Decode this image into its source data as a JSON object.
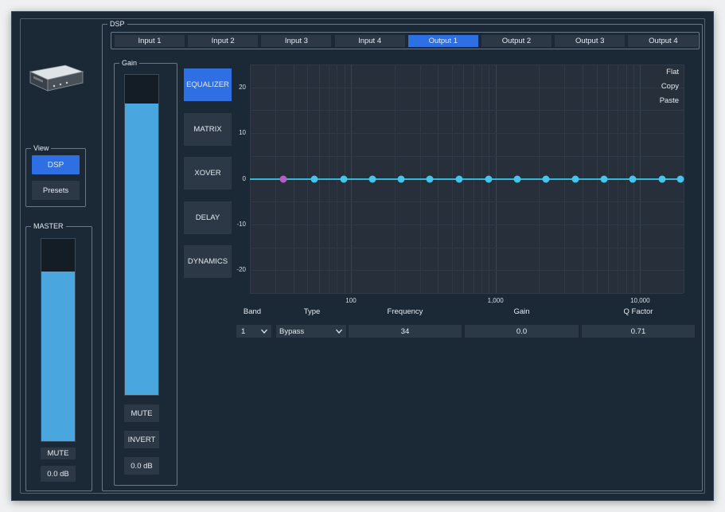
{
  "dsp": {
    "group_label": "DSP",
    "tabs": [
      {
        "label": "Input 1",
        "active": false
      },
      {
        "label": "Input 2",
        "active": false
      },
      {
        "label": "Input 3",
        "active": false
      },
      {
        "label": "Input 4",
        "active": false
      },
      {
        "label": "Output 1",
        "active": true
      },
      {
        "label": "Output 2",
        "active": false
      },
      {
        "label": "Output 3",
        "active": false
      },
      {
        "label": "Output 4",
        "active": false
      }
    ]
  },
  "view": {
    "group_label": "View",
    "dsp_label": "DSP",
    "presets_label": "Presets",
    "active": "DSP"
  },
  "master": {
    "group_label": "MASTER",
    "level": 0.84,
    "mute_label": "MUTE",
    "gain_value": "0.0 dB"
  },
  "gain": {
    "group_label": "Gain",
    "level": 0.91,
    "mute_label": "MUTE",
    "invert_label": "INVERT",
    "gain_value": "0.0 dB"
  },
  "modes": [
    {
      "label": "EQUALIZER",
      "active": true
    },
    {
      "label": "MATRIX",
      "active": false
    },
    {
      "label": "XOVER",
      "active": false
    },
    {
      "label": "DELAY",
      "active": false
    },
    {
      "label": "DYNAMICS",
      "active": false
    }
  ],
  "eq_plot": {
    "menu": [
      "Flat",
      "Copy",
      "Paste"
    ],
    "y_ticks": [
      "20",
      "10",
      "0",
      "-10",
      "-20"
    ],
    "y_range": [
      -25,
      25
    ],
    "x_ticks": [
      "100",
      "1,000",
      "10,000"
    ],
    "x_range_hz": [
      20,
      20000
    ],
    "log_x": true,
    "grid": true,
    "bands": [
      {
        "band": 1,
        "freq": 34,
        "gain": 0,
        "selected": true
      },
      {
        "band": 2,
        "freq": 56,
        "gain": 0,
        "selected": false
      },
      {
        "band": 3,
        "freq": 89,
        "gain": 0,
        "selected": false
      },
      {
        "band": 4,
        "freq": 140,
        "gain": 0,
        "selected": false
      },
      {
        "band": 5,
        "freq": 222,
        "gain": 0,
        "selected": false
      },
      {
        "band": 6,
        "freq": 353,
        "gain": 0,
        "selected": false
      },
      {
        "band": 7,
        "freq": 561,
        "gain": 0,
        "selected": false
      },
      {
        "band": 8,
        "freq": 891,
        "gain": 0,
        "selected": false
      },
      {
        "band": 9,
        "freq": 1413,
        "gain": 0,
        "selected": false
      },
      {
        "band": 10,
        "freq": 2239,
        "gain": 0,
        "selected": false
      },
      {
        "band": 11,
        "freq": 3548,
        "gain": 0,
        "selected": false
      },
      {
        "band": 12,
        "freq": 5623,
        "gain": 0,
        "selected": false
      },
      {
        "band": 13,
        "freq": 8913,
        "gain": 0,
        "selected": false
      },
      {
        "band": 14,
        "freq": 14125,
        "gain": 0,
        "selected": false
      },
      {
        "band": 15,
        "freq": 22000,
        "gain": 0,
        "selected": false
      }
    ]
  },
  "params": {
    "headers": {
      "band": "Band",
      "type": "Type",
      "frequency": "Frequency",
      "gain": "Gain",
      "q": "Q Factor"
    },
    "band_value": "1",
    "type_value": "Bypass",
    "frequency_value": "34",
    "gain_value": "0.0",
    "q_value": "0.71"
  },
  "colors": {
    "accent": "#2f6fe4",
    "meter": "#4aa6df",
    "eq_line": "#3fb3d4",
    "eq_node": "#45c4ec",
    "eq_node_selected": "#b55ec4",
    "background": "#1b2936"
  }
}
